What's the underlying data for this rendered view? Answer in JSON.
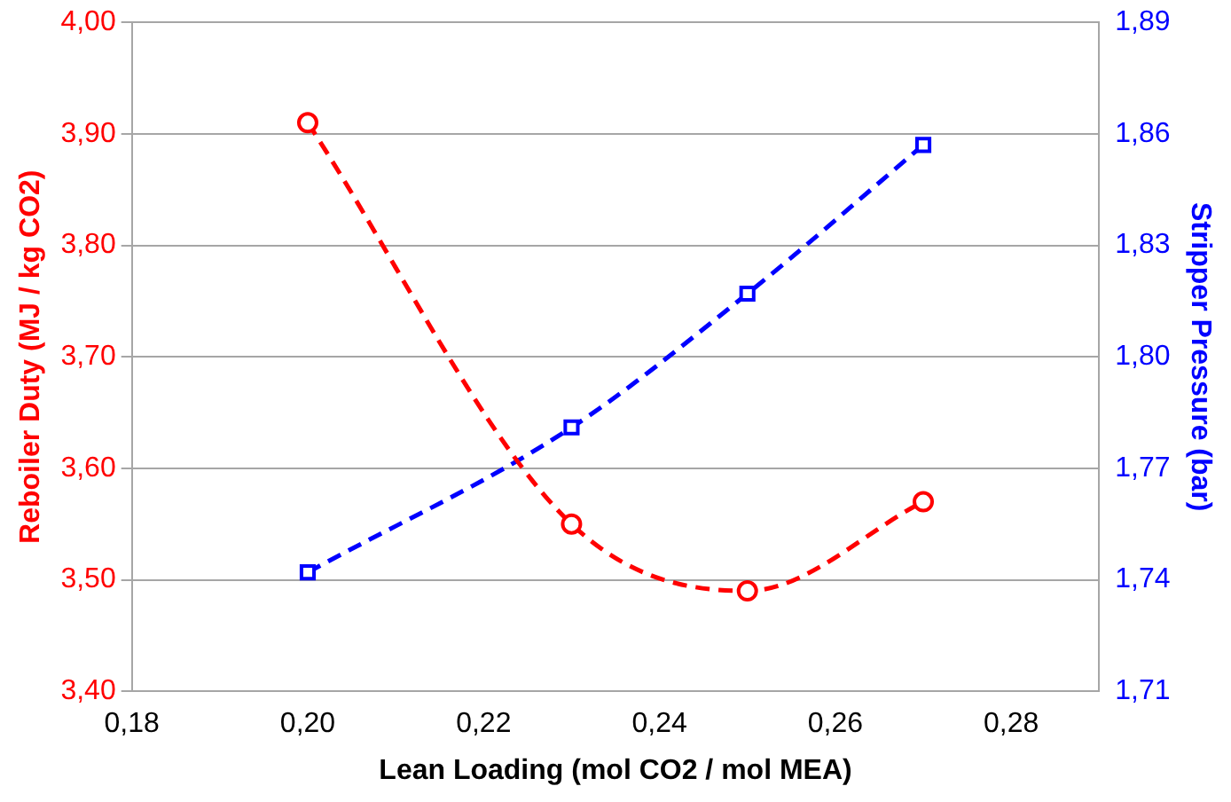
{
  "chart_data": {
    "type": "line",
    "xlabel": "Lean Loading (mol CO2 / mol MEA)",
    "ylabel": "Reboiler Duty (MJ / kg CO2)",
    "y2label": "Stripper Pressure (bar)",
    "x": [
      0.2,
      0.23,
      0.25,
      0.27
    ],
    "series": [
      {
        "color": "#ff0000",
        "values": [
          3.91,
          3.55,
          3.49,
          3.57
        ],
        "marker": "circle"
      },
      {
        "color": "#0000ff",
        "values": [
          1.742,
          1.781,
          1.817,
          1.857
        ],
        "axis": "y2",
        "marker": "square"
      }
    ],
    "xlim": [
      0.18,
      0.29
    ],
    "xticks": [
      {
        "value": 0.18,
        "label": "0,18"
      },
      {
        "value": 0.2,
        "label": "0,20"
      },
      {
        "value": 0.22,
        "label": "0,22"
      },
      {
        "value": 0.24,
        "label": "0,24"
      },
      {
        "value": 0.26,
        "label": "0,26"
      },
      {
        "value": 0.28,
        "label": "0,28"
      }
    ],
    "ylim": [
      3.4,
      4.0
    ],
    "yticks": [
      {
        "value": 3.4,
        "label": "3,40"
      },
      {
        "value": 3.5,
        "label": "3,50"
      },
      {
        "value": 3.6,
        "label": "3,60"
      },
      {
        "value": 3.7,
        "label": "3,70"
      },
      {
        "value": 3.8,
        "label": "3,80"
      },
      {
        "value": 3.9,
        "label": "3,90"
      },
      {
        "value": 4.0,
        "label": "4,00"
      }
    ],
    "y2lim": [
      1.71,
      1.89
    ],
    "y2ticks": [
      {
        "value": 1.71,
        "label": "1,71"
      },
      {
        "value": 1.74,
        "label": "1,74"
      },
      {
        "value": 1.77,
        "label": "1,77"
      },
      {
        "value": 1.8,
        "label": "1,80"
      },
      {
        "value": 1.83,
        "label": "1,83"
      },
      {
        "value": 1.86,
        "label": "1,86"
      },
      {
        "value": 1.89,
        "label": "1,89"
      }
    ],
    "grid": "y",
    "legend": false,
    "line_style": "dashed"
  }
}
